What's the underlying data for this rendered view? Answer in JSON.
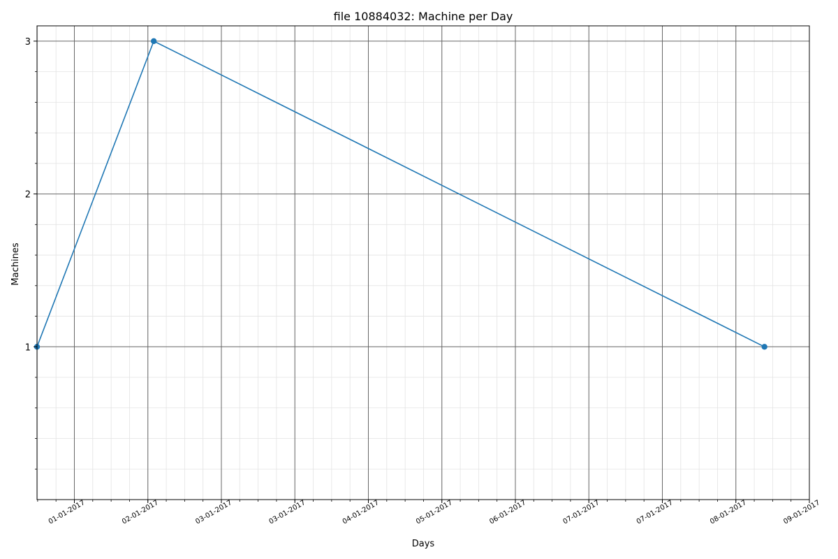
{
  "chart_data": {
    "type": "line",
    "title": "file 10884032: Machine per Day",
    "xlabel": "Days",
    "ylabel": "Machines",
    "x_axis_type": "date",
    "xlim": [
      "2016-12-16",
      "2017-08-31"
    ],
    "ylim": [
      0,
      3.1
    ],
    "y_ticks": [
      1,
      2,
      3
    ],
    "x_tick_labels": [
      "01-01-2017",
      "02-01-2017",
      "03-01-2017",
      "03-01-2017",
      "04-01-2017",
      "05-01-2017",
      "06-01-2017",
      "07-01-2017",
      "07-01-2017",
      "08-01-2017",
      "09-01-2017"
    ],
    "grid": true,
    "color": "#1f77b4",
    "series": [
      {
        "x": [
          "2016-12-16",
          "2017-01-24",
          "2017-08-16"
        ],
        "values": [
          1,
          3,
          1
        ]
      }
    ]
  }
}
